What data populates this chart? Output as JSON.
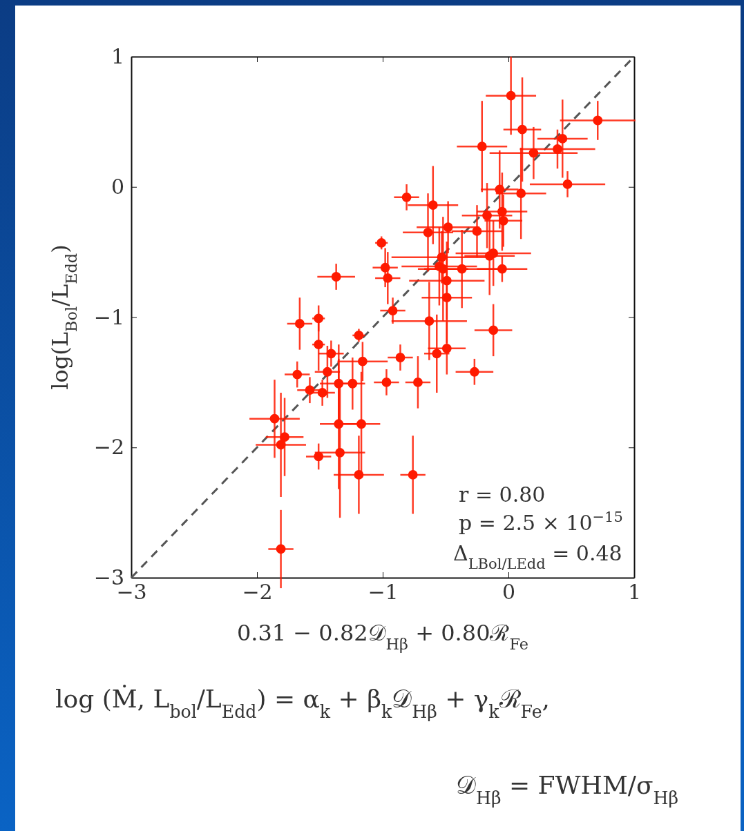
{
  "chart_data": {
    "type": "scatter",
    "xlabel": "0.31 − 0.82𝒟$_{Hβ}$ + 0.80ℛ$_{Fe}$",
    "ylabel": "log(L$_{Bol}$/L$_{Edd}$)",
    "xlim": [
      -3,
      1
    ],
    "ylim": [
      -3,
      1
    ],
    "xticks": [
      {
        "value": -3,
        "label": "−3"
      },
      {
        "value": -2,
        "label": "−2"
      },
      {
        "value": -1,
        "label": "−1"
      },
      0,
      1
    ],
    "yticks": [
      {
        "value": -3,
        "label": "−3"
      },
      {
        "value": -2,
        "label": "−2"
      },
      {
        "value": -1,
        "label": "−1"
      },
      0,
      1
    ],
    "grid": false,
    "series": [
      {
        "color": "#ff1a00",
        "marker": "circle",
        "x": [
          0.02,
          0.11,
          0.71,
          -0.21,
          0.2,
          0.39,
          0.43,
          0.47,
          0.1,
          -0.07,
          -0.81,
          -0.6,
          -0.17,
          -0.04,
          -0.05,
          -0.48,
          -0.64,
          -0.25,
          -1.01,
          -0.15,
          -0.12,
          -0.53,
          -0.05,
          -0.37,
          -0.98,
          -0.52,
          -0.55,
          -0.49,
          -0.96,
          -1.37,
          -0.49,
          -0.92,
          -0.12,
          -1.66,
          -1.51,
          -0.63,
          -1.19,
          -1.51,
          -1.41,
          -0.49,
          -0.57,
          -0.86,
          -1.16,
          -0.27,
          -1.44,
          -1.68,
          -1.35,
          -1.24,
          -0.97,
          -0.72,
          -1.58,
          -1.48,
          -1.86,
          -1.35,
          -1.17,
          -1.78,
          -1.81,
          -1.51,
          -1.34,
          -1.19,
          -0.76,
          -1.81
        ],
        "values": [
          0.7,
          0.44,
          0.51,
          0.31,
          0.26,
          0.29,
          0.37,
          0.02,
          -0.05,
          -0.02,
          -0.08,
          -0.14,
          -0.22,
          -0.26,
          -0.19,
          -0.31,
          -0.35,
          -0.34,
          -0.43,
          -0.53,
          -0.51,
          -0.54,
          -0.63,
          -0.63,
          -0.62,
          -0.63,
          -0.61,
          -0.72,
          -0.7,
          -0.69,
          -0.85,
          -0.95,
          -1.1,
          -1.05,
          -1.01,
          -1.03,
          -1.14,
          -1.21,
          -1.28,
          -1.24,
          -1.28,
          -1.31,
          -1.34,
          -1.42,
          -1.42,
          -1.44,
          -1.51,
          -1.51,
          -1.5,
          -1.5,
          -1.56,
          -1.58,
          -1.78,
          -1.82,
          -1.82,
          -1.92,
          -1.98,
          -2.07,
          -2.04,
          -2.21,
          -2.21,
          -2.78
        ],
        "xerrors": [
          0.2,
          0.15,
          0.3,
          0.2,
          0.35,
          0.3,
          0.2,
          0.3,
          0.2,
          0.15,
          0.1,
          0.2,
          0.2,
          0.15,
          0.2,
          0.25,
          0.2,
          0.2,
          0.05,
          0.2,
          0.3,
          0.4,
          0.2,
          0.3,
          0.1,
          0.2,
          0.3,
          0.3,
          0.1,
          0.15,
          0.2,
          0.1,
          0.15,
          0.1,
          0.05,
          0.3,
          0.05,
          0.05,
          0.1,
          0.15,
          0.1,
          0.1,
          0.2,
          0.15,
          0.1,
          0.1,
          0.15,
          0.1,
          0.1,
          0.1,
          0.1,
          0.1,
          0.2,
          0.15,
          0.15,
          0.15,
          0.2,
          0.1,
          0.2,
          0.2,
          0.1,
          0.1
        ],
        "errors": [
          0.3,
          0.4,
          0.15,
          0.35,
          0.2,
          0.15,
          0.3,
          0.1,
          0.35,
          0.3,
          0.1,
          0.3,
          0.25,
          0.2,
          0.3,
          0.2,
          0.3,
          0.2,
          0.05,
          0.3,
          0.25,
          0.2,
          0.1,
          0.3,
          0.15,
          0.4,
          0.3,
          0.3,
          0.2,
          0.1,
          0.35,
          0.1,
          0.2,
          0.2,
          0.1,
          0.3,
          0.05,
          0.2,
          0.1,
          0.2,
          0.3,
          0.1,
          0.15,
          0.1,
          0.2,
          0.1,
          0.3,
          0.2,
          0.1,
          0.2,
          0.1,
          0.1,
          0.3,
          0.5,
          0.4,
          0.3,
          0.4,
          0.1,
          0.5,
          0.3,
          0.3,
          0.3
        ]
      },
      {
        "type": "line",
        "color": "#555555",
        "line_style": "dashed",
        "marker": "none",
        "x": [
          -3,
          1
        ],
        "values": [
          -3,
          1
        ]
      }
    ],
    "annotations": [
      "r = 0.80",
      "p = 2.5 × 10$^{−15}$",
      "Δ$_{LBol/LEdd}$ = 0.48",
      "log (Ṁ, L$_{bol}$/L$_{Edd}$) = α$_{k}$ + β$_{k}$𝒟$_{Hβ}$ + γ$_{k}$ℛ$_{Fe}$,",
      "𝒟$_{Hβ}$ = FWHM/σ$_{Hβ}$"
    ]
  }
}
